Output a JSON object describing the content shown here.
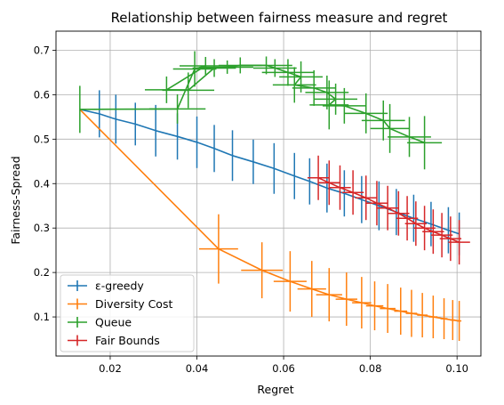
{
  "chart_data": {
    "type": "line",
    "title": "Relationship between fairness measure and regret",
    "xlabel": "Regret",
    "ylabel": "Fairness-Spread",
    "xlim": [
      0.0075,
      0.1055
    ],
    "ylim": [
      0.012,
      0.743
    ],
    "xticks": [
      0.02,
      0.04,
      0.06,
      0.08,
      0.1
    ],
    "xtick_labels": [
      "0.02",
      "0.04",
      "0.06",
      "0.08",
      "0.10"
    ],
    "yticks": [
      0.1,
      0.2,
      0.3,
      0.4,
      0.5,
      0.6,
      0.7
    ],
    "ytick_labels": [
      "0.1",
      "0.2",
      "0.3",
      "0.4",
      "0.5",
      "0.6",
      "0.7"
    ],
    "grid": true,
    "legend_position": "lower-left",
    "series": [
      {
        "name": "ε-greedy",
        "color": "#1f77b4",
        "points": [
          {
            "x": 0.013,
            "y": 0.567,
            "xerr": 0.0,
            "yerr": 0.0
          },
          {
            "x": 0.0175,
            "y": 0.557,
            "xerr": 0.0,
            "yerr": 0.053
          },
          {
            "x": 0.0213,
            "y": 0.545,
            "xerr": 0.0,
            "yerr": 0.055
          },
          {
            "x": 0.0258,
            "y": 0.534,
            "xerr": 0.0,
            "yerr": 0.048
          },
          {
            "x": 0.0305,
            "y": 0.519,
            "xerr": 0.0,
            "yerr": 0.058
          },
          {
            "x": 0.0355,
            "y": 0.506,
            "xerr": 0.0,
            "yerr": 0.052
          },
          {
            "x": 0.04,
            "y": 0.493,
            "xerr": 0.0,
            "yerr": 0.058
          },
          {
            "x": 0.044,
            "y": 0.479,
            "xerr": 0.0,
            "yerr": 0.053
          },
          {
            "x": 0.0482,
            "y": 0.463,
            "xerr": 0.0,
            "yerr": 0.057
          },
          {
            "x": 0.053,
            "y": 0.449,
            "xerr": 0.0,
            "yerr": 0.05
          },
          {
            "x": 0.0578,
            "y": 0.434,
            "xerr": 0.0,
            "yerr": 0.057
          },
          {
            "x": 0.0625,
            "y": 0.417,
            "xerr": 0.0,
            "yerr": 0.052
          },
          {
            "x": 0.066,
            "y": 0.405,
            "xerr": 0.0,
            "yerr": 0.052
          },
          {
            "x": 0.07,
            "y": 0.39,
            "xerr": 0.0,
            "yerr": 0.055
          },
          {
            "x": 0.074,
            "y": 0.378,
            "xerr": 0.0,
            "yerr": 0.052
          },
          {
            "x": 0.078,
            "y": 0.364,
            "xerr": 0.0,
            "yerr": 0.053
          },
          {
            "x": 0.082,
            "y": 0.35,
            "xerr": 0.0,
            "yerr": 0.055
          },
          {
            "x": 0.086,
            "y": 0.336,
            "xerr": 0.0,
            "yerr": 0.052
          },
          {
            "x": 0.09,
            "y": 0.322,
            "xerr": 0.0,
            "yerr": 0.053
          },
          {
            "x": 0.094,
            "y": 0.309,
            "xerr": 0.0,
            "yerr": 0.05
          },
          {
            "x": 0.098,
            "y": 0.295,
            "xerr": 0.0,
            "yerr": 0.052
          },
          {
            "x": 0.1005,
            "y": 0.287,
            "xerr": 0.0,
            "yerr": 0.048
          }
        ]
      },
      {
        "name": "Diversity Cost",
        "color": "#ff7f0e",
        "points": [
          {
            "x": 0.013,
            "y": 0.567,
            "xerr": 0.0,
            "yerr": 0.0
          },
          {
            "x": 0.045,
            "y": 0.253,
            "xerr": 0.0045,
            "yerr": 0.078
          },
          {
            "x": 0.055,
            "y": 0.205,
            "xerr": 0.0048,
            "yerr": 0.063
          },
          {
            "x": 0.0615,
            "y": 0.18,
            "xerr": 0.0038,
            "yerr": 0.068
          },
          {
            "x": 0.0665,
            "y": 0.163,
            "xerr": 0.0033,
            "yerr": 0.063
          },
          {
            "x": 0.0705,
            "y": 0.15,
            "xerr": 0.003,
            "yerr": 0.06
          },
          {
            "x": 0.0745,
            "y": 0.14,
            "xerr": 0.0025,
            "yerr": 0.06
          },
          {
            "x": 0.078,
            "y": 0.132,
            "xerr": 0.0022,
            "yerr": 0.058
          },
          {
            "x": 0.081,
            "y": 0.125,
            "xerr": 0.002,
            "yerr": 0.055
          },
          {
            "x": 0.084,
            "y": 0.119,
            "xerr": 0.0018,
            "yerr": 0.055
          },
          {
            "x": 0.087,
            "y": 0.113,
            "xerr": 0.0015,
            "yerr": 0.053
          },
          {
            "x": 0.0895,
            "y": 0.108,
            "xerr": 0.0013,
            "yerr": 0.053
          },
          {
            "x": 0.092,
            "y": 0.104,
            "xerr": 0.0012,
            "yerr": 0.05
          },
          {
            "x": 0.0945,
            "y": 0.1,
            "xerr": 0.001,
            "yerr": 0.048
          },
          {
            "x": 0.097,
            "y": 0.096,
            "xerr": 0.0008,
            "yerr": 0.046
          },
          {
            "x": 0.099,
            "y": 0.093,
            "xerr": 0.0006,
            "yerr": 0.045
          },
          {
            "x": 0.1005,
            "y": 0.091,
            "xerr": 0.0005,
            "yerr": 0.045
          }
        ]
      },
      {
        "name": "Queue",
        "color": "#2ca02c",
        "points": [
          {
            "x": 0.013,
            "y": 0.567,
            "xerr": 0.0,
            "yerr": 0.053
          },
          {
            "x": 0.0355,
            "y": 0.568,
            "xerr": 0.0065,
            "yerr": 0.033
          },
          {
            "x": 0.0395,
            "y": 0.658,
            "xerr": 0.005,
            "yerr": 0.04
          },
          {
            "x": 0.042,
            "y": 0.665,
            "xerr": 0.006,
            "yerr": 0.02
          },
          {
            "x": 0.033,
            "y": 0.611,
            "xerr": 0.005,
            "yerr": 0.03
          },
          {
            "x": 0.038,
            "y": 0.61,
            "xerr": 0.006,
            "yerr": 0.04
          },
          {
            "x": 0.044,
            "y": 0.66,
            "xerr": 0.005,
            "yerr": 0.02
          },
          {
            "x": 0.047,
            "y": 0.662,
            "xerr": 0.006,
            "yerr": 0.015
          },
          {
            "x": 0.05,
            "y": 0.666,
            "xerr": 0.005,
            "yerr": 0.018
          },
          {
            "x": 0.056,
            "y": 0.666,
            "xerr": 0.006,
            "yerr": 0.02
          },
          {
            "x": 0.058,
            "y": 0.66,
            "xerr": 0.005,
            "yerr": 0.02
          },
          {
            "x": 0.061,
            "y": 0.65,
            "xerr": 0.006,
            "yerr": 0.03
          },
          {
            "x": 0.064,
            "y": 0.64,
            "xerr": 0.005,
            "yerr": 0.035
          },
          {
            "x": 0.0625,
            "y": 0.622,
            "xerr": 0.005,
            "yerr": 0.04
          },
          {
            "x": 0.067,
            "y": 0.615,
            "xerr": 0.005,
            "yerr": 0.04
          },
          {
            "x": 0.07,
            "y": 0.605,
            "xerr": 0.005,
            "yerr": 0.038
          },
          {
            "x": 0.072,
            "y": 0.59,
            "xerr": 0.005,
            "yerr": 0.035
          },
          {
            "x": 0.0705,
            "y": 0.577,
            "xerr": 0.0045,
            "yerr": 0.055
          },
          {
            "x": 0.074,
            "y": 0.575,
            "xerr": 0.005,
            "yerr": 0.04
          },
          {
            "x": 0.079,
            "y": 0.558,
            "xerr": 0.005,
            "yerr": 0.045
          },
          {
            "x": 0.083,
            "y": 0.542,
            "xerr": 0.005,
            "yerr": 0.045
          },
          {
            "x": 0.0845,
            "y": 0.524,
            "xerr": 0.0045,
            "yerr": 0.055
          },
          {
            "x": 0.089,
            "y": 0.505,
            "xerr": 0.005,
            "yerr": 0.045
          },
          {
            "x": 0.0925,
            "y": 0.492,
            "xerr": 0.004,
            "yerr": 0.06
          }
        ]
      },
      {
        "name": "Fair Bounds",
        "color": "#d62728",
        "points": [
          {
            "x": 0.068,
            "y": 0.413,
            "xerr": 0.0025,
            "yerr": 0.05
          },
          {
            "x": 0.0705,
            "y": 0.402,
            "xerr": 0.0025,
            "yerr": 0.05
          },
          {
            "x": 0.073,
            "y": 0.391,
            "xerr": 0.0025,
            "yerr": 0.05
          },
          {
            "x": 0.076,
            "y": 0.38,
            "xerr": 0.0025,
            "yerr": 0.05
          },
          {
            "x": 0.079,
            "y": 0.368,
            "xerr": 0.0025,
            "yerr": 0.05
          },
          {
            "x": 0.0815,
            "y": 0.356,
            "xerr": 0.0025,
            "yerr": 0.05
          },
          {
            "x": 0.084,
            "y": 0.345,
            "xerr": 0.0025,
            "yerr": 0.05
          },
          {
            "x": 0.0865,
            "y": 0.333,
            "xerr": 0.0025,
            "yerr": 0.05
          },
          {
            "x": 0.0885,
            "y": 0.322,
            "xerr": 0.0025,
            "yerr": 0.05
          },
          {
            "x": 0.0905,
            "y": 0.31,
            "xerr": 0.0025,
            "yerr": 0.05
          },
          {
            "x": 0.0925,
            "y": 0.3,
            "xerr": 0.0025,
            "yerr": 0.05
          },
          {
            "x": 0.0945,
            "y": 0.292,
            "xerr": 0.0025,
            "yerr": 0.05
          },
          {
            "x": 0.0965,
            "y": 0.284,
            "xerr": 0.0025,
            "yerr": 0.05
          },
          {
            "x": 0.0985,
            "y": 0.276,
            "xerr": 0.0025,
            "yerr": 0.05
          },
          {
            "x": 0.1005,
            "y": 0.268,
            "xerr": 0.0025,
            "yerr": 0.05
          }
        ]
      }
    ]
  }
}
